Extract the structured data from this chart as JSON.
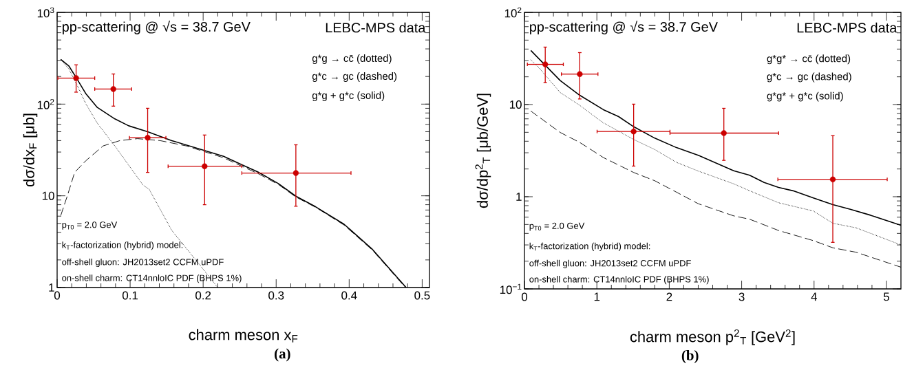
{
  "chart_data": [
    {
      "type": "line",
      "xlabel": "charm meson x$_{F}$",
      "ylabel": "dσ/dx$_{F}$ [μb]",
      "log": "y",
      "xlim": [
        0,
        0.51
      ],
      "ylim": [
        1,
        1000
      ],
      "xticks": [
        0,
        0.1,
        0.2,
        0.3,
        0.4,
        0.5
      ],
      "yticks": [
        1,
        10,
        {
          "value": 100,
          "label": "10$^{2}$"
        },
        {
          "value": 1000,
          "label": "10$^{3}$"
        }
      ],
      "annotations": [
        "pp-scattering @ √s = 38.7 GeV",
        "LEBC-MPS data",
        "g*g → cc̄ (dotted)",
        "g*c → gc (dashed)",
        "g*g + g*c (solid)",
        "p$_{T0}$ = 2.0 GeV",
        "k$_{T}$-factorization (hybrid) model:",
        "off-shell gluon: JH2013set2 CCFM uPDF",
        "on-shell charm: CT14nnloIC PDF (BHPS 1%)",
        "(a)"
      ],
      "series": [
        {
          "color": "#000000",
          "line_style": "dotted",
          "marker": "none",
          "x": [
            0.005,
            0.016,
            0.028,
            0.039,
            0.055,
            0.079,
            0.102,
            0.118,
            0.126,
            0.157,
            0.197,
            0.22
          ],
          "values": [
            307,
            242,
            157,
            102,
            62,
            35,
            19.5,
            13,
            11.8,
            4.2,
            1.7,
            1.0
          ]
        },
        {
          "color": "#000000",
          "line_style": "dashed",
          "marker": "none",
          "x": [
            0.005,
            0.014,
            0.024,
            0.039,
            0.063,
            0.086,
            0.11,
            0.141,
            0.177,
            0.228,
            0.253,
            0.275,
            0.303,
            0.327,
            0.354,
            0.393,
            0.432,
            0.477
          ],
          "values": [
            6.1,
            10,
            18,
            24,
            35,
            40,
            42,
            40,
            35,
            26,
            21,
            17.5,
            13.3,
            9.7,
            7.5,
            4.8,
            2.55,
            1.0
          ]
        },
        {
          "color": "#000000",
          "line_style": "solid",
          "marker": "none",
          "x": [
            0.005,
            0.016,
            0.026,
            0.039,
            0.055,
            0.079,
            0.098,
            0.124,
            0.157,
            0.197,
            0.228,
            0.253,
            0.275,
            0.303,
            0.327,
            0.354,
            0.393,
            0.432,
            0.478
          ],
          "values": [
            307,
            261,
            195,
            131,
            92,
            69,
            58,
            50,
            40,
            32,
            27,
            21.8,
            18.2,
            13.6,
            9.9,
            7.6,
            4.9,
            2.6,
            1.0
          ]
        },
        {
          "type": "scatter",
          "color": "#cc0000",
          "marker": "circle",
          "x": [
            0.026,
            0.077,
            0.124,
            0.202,
            0.327
          ],
          "values": [
            192,
            146,
            43,
            21,
            17.7
          ],
          "errors": [
            [
              135,
              268
            ],
            [
              95,
              213
            ],
            [
              18,
              90
            ],
            [
              8,
              46
            ],
            [
              7.7,
              36
            ]
          ],
          "xerrors": [
            [
              0.001,
              0.0515
            ],
            [
              0.0515,
              0.102
            ],
            [
              0.099,
              0.149
            ],
            [
              0.152,
              0.253
            ],
            [
              0.253,
              0.4025
            ]
          ]
        }
      ]
    },
    {
      "type": "line",
      "xlabel": "charm meson p$^{2}$$_{T}$ [GeV$^{2}$]",
      "ylabel": "dσ/dp$^{2}$$_{T}$ [μb/GeV]",
      "log": "y",
      "xlim": [
        0,
        5.2
      ],
      "ylim": [
        0.1,
        100
      ],
      "xticks": [
        0,
        1,
        2,
        3,
        4,
        5
      ],
      "yticks": [
        {
          "value": 0.1,
          "label": "10$^{−1}$"
        },
        1,
        10,
        {
          "value": 100,
          "label": "10$^{2}$"
        }
      ],
      "annotations": [
        "pp-scattering @ √s = 38.7 GeV",
        "LEBC-MPS data",
        "g*g* → cc̄ (dotted)",
        "g*c → gc (dashed)",
        "g*g* + g*c (solid)",
        "p$_{T0}$ = 2.0 GeV",
        "k$_{T}$-factorization (hybrid) model:",
        "off-shell gluon: JH2013set2 CCFM uPDF",
        "on-shell charm: CT14nnloIC PDF (BHPS 1%)",
        "(b)"
      ],
      "series": [
        {
          "color": "#000000",
          "line_style": "dotted",
          "marker": "none",
          "x": [
            0.088,
            0.207,
            0.494,
            0.764,
            1.08,
            1.51,
            1.8,
            2.1,
            2.4,
            2.89,
            3.11,
            3.51,
            3.99,
            4.26,
            4.58,
            5.2
          ],
          "values": [
            30.5,
            24.7,
            13.5,
            9.8,
            6.4,
            4.17,
            3.25,
            2.36,
            1.9,
            1.38,
            1.16,
            0.86,
            0.7,
            0.515,
            0.46,
            0.3
          ]
        },
        {
          "color": "#000000",
          "line_style": "dashed",
          "marker": "none",
          "x": [
            0.088,
            0.494,
            0.764,
            1.09,
            1.51,
            1.8,
            2.1,
            2.4,
            2.89,
            3.11,
            3.51,
            3.99,
            4.26,
            4.58,
            5.2
          ],
          "values": [
            8.5,
            4.98,
            3.88,
            2.66,
            1.83,
            1.49,
            1.12,
            0.84,
            0.62,
            0.57,
            0.43,
            0.334,
            0.279,
            0.25,
            0.172
          ]
        },
        {
          "color": "#000000",
          "line_style": "solid",
          "marker": "none",
          "x": [
            0.088,
            0.494,
            0.764,
            1.09,
            1.3,
            1.51,
            1.8,
            2.1,
            2.4,
            2.89,
            3.11,
            3.31,
            3.51,
            3.71,
            3.99,
            4.26,
            4.5,
            4.78,
            5.2
          ],
          "values": [
            38.6,
            18.2,
            12.6,
            8.8,
            7.4,
            5.74,
            4.32,
            3.41,
            2.82,
            1.91,
            1.71,
            1.43,
            1.26,
            1.16,
            0.97,
            0.82,
            0.73,
            0.63,
            0.49
          ]
        },
        {
          "type": "scatter",
          "color": "#cc0000",
          "marker": "circle",
          "x": [
            0.287,
            0.764,
            1.508,
            2.754,
            4.259
          ],
          "values": [
            27.3,
            21.4,
            5.1,
            4.9,
            1.54
          ],
          "errors": [
            [
              17.3,
              42
            ],
            [
              11.5,
              36.6
            ],
            [
              2.15,
              10.1
            ],
            [
              2.48,
              9.1
            ],
            [
              0.32,
              4.6
            ]
          ],
          "xerrors": [
            [
              0.04,
              0.537
            ],
            [
              0.51,
              1.015
            ],
            [
              1.003,
              2.01
            ],
            [
              2.01,
              3.51
            ],
            [
              3.5,
              5.01
            ]
          ]
        }
      ]
    }
  ]
}
